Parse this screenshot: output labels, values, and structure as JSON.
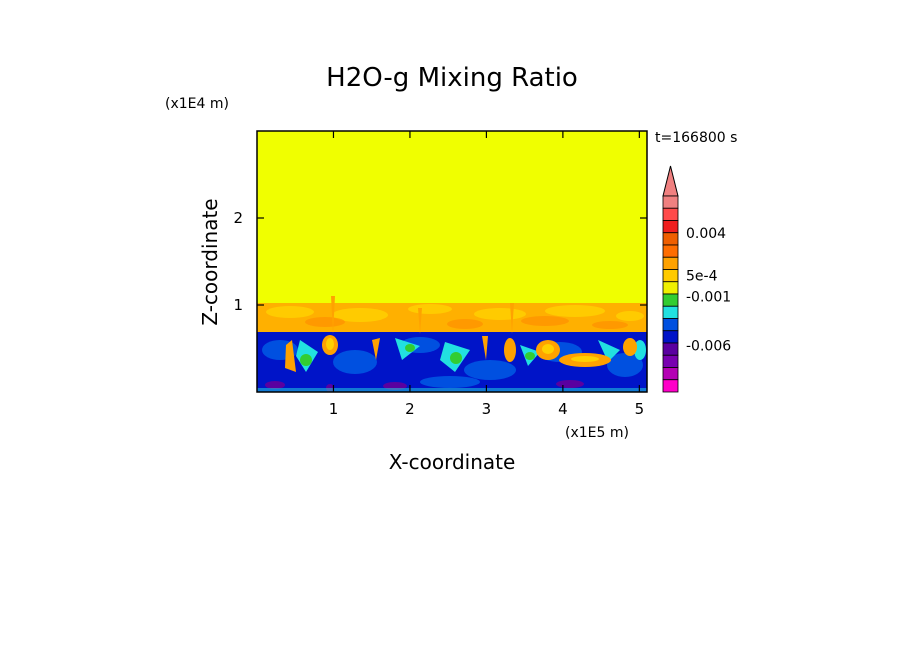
{
  "chart_data": {
    "type": "heatmap",
    "title": "H2O-g Mixing Ratio",
    "time_label": "t=166800 s",
    "xlabel": "X-coordinate",
    "ylabel": "Z-coordinate",
    "x_unit": "(x1E5 m)",
    "y_unit": "(x1E4 m)",
    "xlim": [
      0,
      5.1
    ],
    "ylim": [
      0,
      3.0
    ],
    "x_ticks": [
      1,
      2,
      3,
      4,
      5
    ],
    "y_ticks": [
      1,
      2
    ],
    "x_tick_labels": [
      "1",
      "2",
      "3",
      "4",
      "5"
    ],
    "y_tick_labels": [
      "1",
      "2"
    ],
    "grid": false,
    "colorbar": {
      "placement": "right",
      "levels_top_to_bottom": [
        "#f08080",
        "#ff4a4a",
        "#f01e1e",
        "#ef5f00",
        "#ff6d00",
        "#ffa200",
        "#ffca00",
        "#f0f000",
        "#32cd32",
        "#22e0e0",
        "#0050e0",
        "#0014c8",
        "#5a00a0",
        "#7800b0",
        "#b400b4",
        "#ff00c8"
      ],
      "labels": [
        {
          "text": "0.004",
          "level": 3
        },
        {
          "text": "5e-4",
          "level": 6.5
        },
        {
          "text": "-0.001",
          "level": 8.2
        },
        {
          "text": "-0.006",
          "level": 12.2
        }
      ]
    },
    "layers": [
      {
        "name": "upper",
        "z_range": [
          1.0,
          3.0
        ],
        "color": "#f0ff00"
      },
      {
        "name": "transition",
        "z_range": [
          0.7,
          1.05
        ],
        "color": "#ffb000"
      },
      {
        "name": "lower",
        "z_range": [
          0.0,
          0.7
        ],
        "color": "#0014c8"
      }
    ]
  }
}
